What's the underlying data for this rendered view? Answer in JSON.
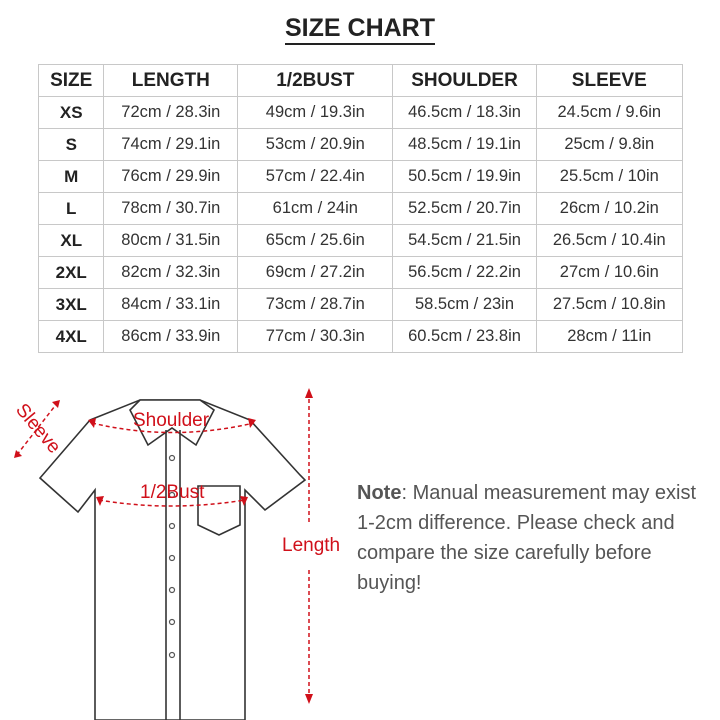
{
  "title": "SIZE CHART",
  "table": {
    "headers": [
      "SIZE",
      "LENGTH",
      "1/2BUST",
      "SHOULDER",
      "SLEEVE"
    ],
    "rows": [
      [
        "XS",
        "72cm / 28.3in",
        "49cm / 19.3in",
        "46.5cm / 18.3in",
        "24.5cm / 9.6in"
      ],
      [
        "S",
        "74cm / 29.1in",
        "53cm / 20.9in",
        "48.5cm / 19.1in",
        "25cm / 9.8in"
      ],
      [
        "M",
        "76cm / 29.9in",
        "57cm / 22.4in",
        "50.5cm / 19.9in",
        "25.5cm / 10in"
      ],
      [
        "L",
        "78cm / 30.7in",
        "61cm / 24in",
        "52.5cm / 20.7in",
        "26cm / 10.2in"
      ],
      [
        "XL",
        "80cm / 31.5in",
        "65cm / 25.6in",
        "54.5cm / 21.5in",
        "26.5cm / 10.4in"
      ],
      [
        "2XL",
        "82cm / 32.3in",
        "69cm / 27.2in",
        "56.5cm / 22.2in",
        "27cm / 10.6in"
      ],
      [
        "3XL",
        "84cm / 33.1in",
        "73cm / 28.7in",
        "58.5cm / 23in",
        "27.5cm / 10.8in"
      ],
      [
        "4XL",
        "86cm / 33.9in",
        "77cm / 30.3in",
        "60.5cm / 23.8in",
        "28cm / 11in"
      ]
    ]
  },
  "diagram": {
    "sleeve": "Sleeve",
    "shoulder": "Shoulder",
    "bust": "1/2Bust",
    "length": "Length",
    "accent_color": "#d0101a"
  },
  "note": {
    "label": "Note",
    "text": ": Manual measurement may exist 1-2cm difference. Please check and compare the size carefully before buying!"
  }
}
